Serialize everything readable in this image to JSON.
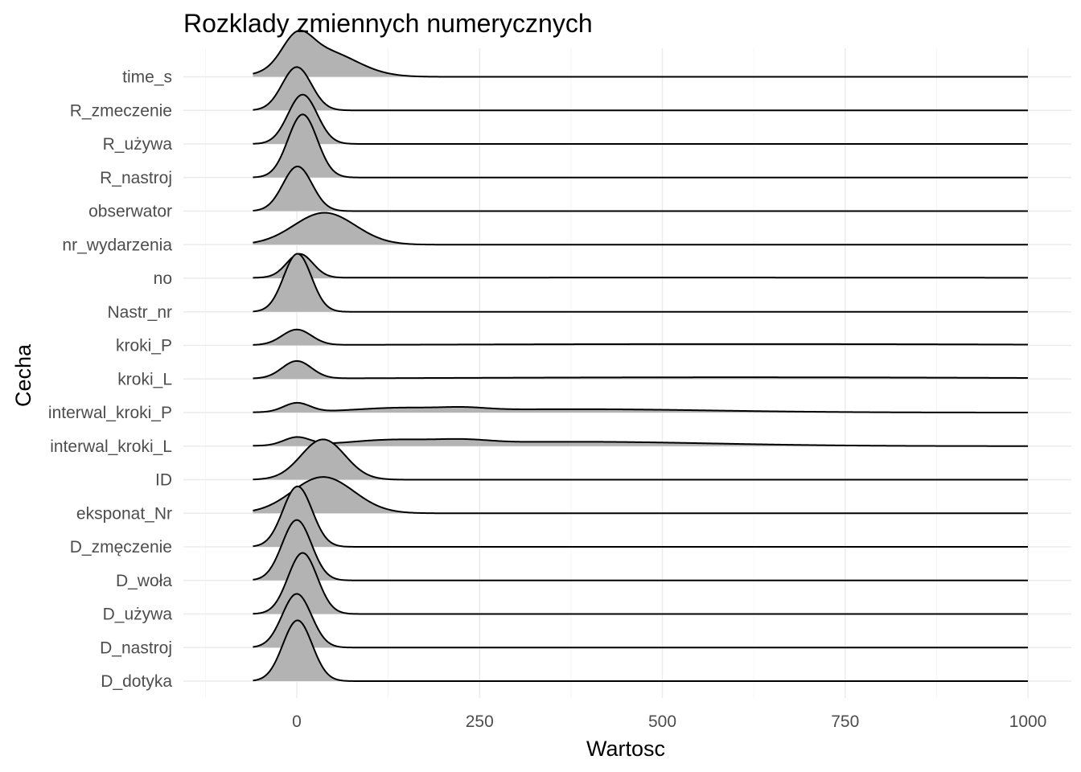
{
  "chart_data": {
    "type": "ridgeline",
    "title": "Rozklady zmiennych numerycznych",
    "xlabel": "Wartosc",
    "ylabel": "Cecha",
    "xlim": [
      -60,
      1000
    ],
    "x_ticks": [
      0,
      250,
      500,
      750,
      1000
    ],
    "grid": true,
    "fill_color": "#b3b3b3",
    "line_color": "#000000",
    "categories": [
      "D_dotyka",
      "D_nastroj",
      "D_używa",
      "D_woła",
      "D_zmęczenie",
      "eksponat_Nr",
      "ID",
      "interwal_kroki_L",
      "interwal_kroki_P",
      "kroki_L",
      "kroki_P",
      "Nastr_nr",
      "no",
      "nr_wydarzenia",
      "obserwator",
      "R_nastroj",
      "R_używa",
      "R_zmeczenie",
      "time_s"
    ],
    "series": [
      {
        "name": "D_dotyka",
        "components": [
          {
            "mean": 1,
            "sd": 20,
            "h": 1.81
          }
        ]
      },
      {
        "name": "D_nastroj",
        "components": [
          {
            "mean": 0,
            "sd": 20,
            "h": 1.6
          }
        ]
      },
      {
        "name": "D_używa",
        "components": [
          {
            "mean": 8,
            "sd": 20,
            "h": 1.82
          }
        ]
      },
      {
        "name": "D_woła",
        "components": [
          {
            "mean": 0,
            "sd": 20,
            "h": 1.8
          }
        ]
      },
      {
        "name": "D_zmęczenie",
        "components": [
          {
            "mean": 1,
            "sd": 20,
            "h": 1.8
          }
        ]
      },
      {
        "name": "eksponat_Nr",
        "components": [
          {
            "mean": 36,
            "sd": 42,
            "h": 1.08
          }
        ]
      },
      {
        "name": "ID",
        "components": [
          {
            "mean": 36,
            "sd": 30,
            "h": 1.2
          }
        ]
      },
      {
        "name": "interwal_kroki_L",
        "components": [
          {
            "mean": 0,
            "sd": 18,
            "h": 0.24
          },
          {
            "mean": 130,
            "sd": 60,
            "h": 0.14
          },
          {
            "mean": 230,
            "sd": 35,
            "h": 0.08
          },
          {
            "mean": 380,
            "sd": 190,
            "h": 0.13
          }
        ]
      },
      {
        "name": "interwal_kroki_P",
        "components": [
          {
            "mean": 0,
            "sd": 18,
            "h": 0.27
          },
          {
            "mean": 140,
            "sd": 60,
            "h": 0.1
          },
          {
            "mean": 230,
            "sd": 30,
            "h": 0.06
          },
          {
            "mean": 380,
            "sd": 190,
            "h": 0.1
          }
        ]
      },
      {
        "name": "kroki_L",
        "components": [
          {
            "mean": 0,
            "sd": 20,
            "h": 0.52
          },
          {
            "mean": 600,
            "sd": 400,
            "h": 0.05
          }
        ]
      },
      {
        "name": "kroki_P",
        "components": [
          {
            "mean": 0,
            "sd": 20,
            "h": 0.46
          },
          {
            "mean": 600,
            "sd": 400,
            "h": 0.04
          }
        ]
      },
      {
        "name": "Nastr_nr",
        "components": [
          {
            "mean": 1,
            "sd": 19,
            "h": 1.73
          }
        ]
      },
      {
        "name": "no",
        "components": [
          {
            "mean": 4,
            "sd": 18,
            "h": 0.71
          },
          {
            "mean": 500,
            "sd": 700,
            "h": 0.02
          }
        ]
      },
      {
        "name": "nr_wydarzenia",
        "components": [
          {
            "mean": 38,
            "sd": 42,
            "h": 0.95
          }
        ]
      },
      {
        "name": "obserwator",
        "components": [
          {
            "mean": 1,
            "sd": 20,
            "h": 1.33
          }
        ]
      },
      {
        "name": "R_nastroj",
        "components": [
          {
            "mean": 8,
            "sd": 20,
            "h": 1.88
          }
        ]
      },
      {
        "name": "R_używa",
        "components": [
          {
            "mean": 8,
            "sd": 20,
            "h": 1.47
          }
        ]
      },
      {
        "name": "R_zmeczenie",
        "components": [
          {
            "mean": 0,
            "sd": 20,
            "h": 1.29
          }
        ]
      },
      {
        "name": "time_s",
        "components": [
          {
            "mean": 0,
            "sd": 20,
            "h": 0.78
          },
          {
            "mean": 35,
            "sd": 45,
            "h": 0.78
          }
        ]
      }
    ]
  }
}
